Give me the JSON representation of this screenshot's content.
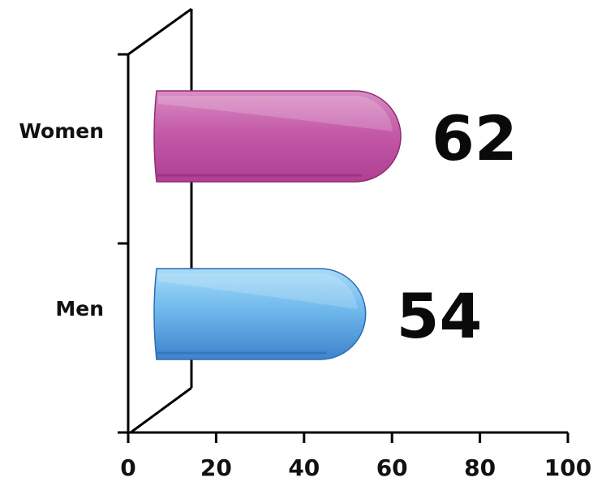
{
  "chart_data": {
    "type": "bar",
    "orientation": "horizontal",
    "categories": [
      "Women",
      "Men"
    ],
    "values": [
      62,
      54
    ],
    "xlim": [
      0,
      100
    ],
    "xticks": [
      "0",
      "20",
      "40",
      "60",
      "80",
      "100"
    ],
    "title": "",
    "xlabel": "",
    "ylabel": "",
    "grid": false,
    "legend": "none",
    "bar_colors": [
      "#c558a8",
      "#5aaee6"
    ],
    "value_labels": [
      "62",
      "54"
    ]
  }
}
